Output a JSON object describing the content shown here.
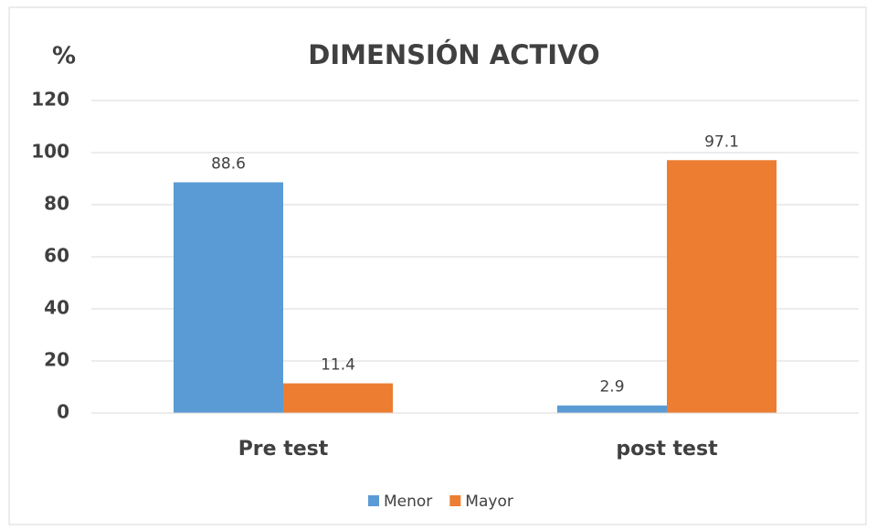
{
  "chart_data": {
    "type": "bar",
    "title": "DIMENSIÓN ACTIVO",
    "y_label": "%",
    "categories": [
      "Pre test",
      "post test"
    ],
    "series": [
      {
        "name": "Menor",
        "color": "#5b9bd5",
        "values": [
          88.6,
          2.9
        ]
      },
      {
        "name": "Mayor",
        "color": "#ed7d31",
        "values": [
          11.4,
          97.1
        ]
      }
    ],
    "ylim": [
      0,
      120
    ],
    "yticks": [
      0,
      20,
      40,
      60,
      80,
      100,
      120
    ],
    "grid": true,
    "legend": "bottom"
  }
}
